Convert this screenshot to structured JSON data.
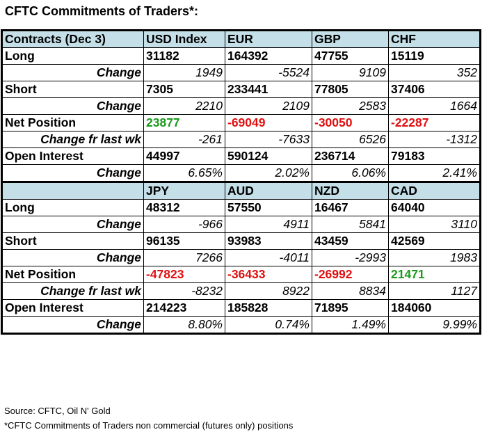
{
  "title": "CFTC Commitments of Traders*:",
  "top": {
    "header": [
      "Contracts (Dec 3)",
      "USD Index",
      "EUR",
      "GBP",
      "CHF"
    ],
    "rows": [
      {
        "label": "Long",
        "kind": "main",
        "values": [
          "31182",
          "164392",
          "47755",
          "15119"
        ]
      },
      {
        "label": "Change",
        "kind": "sub",
        "values": [
          "1949",
          "-5524",
          "9109",
          "352"
        ]
      },
      {
        "label": "Short",
        "kind": "main",
        "values": [
          "7305",
          "233441",
          "77805",
          "37406"
        ]
      },
      {
        "label": "Change",
        "kind": "sub",
        "values": [
          "2210",
          "2109",
          "2583",
          "1664"
        ]
      },
      {
        "label": "Net Position",
        "kind": "net",
        "values": [
          "23877",
          "-69049",
          "-30050",
          "-22287"
        ]
      },
      {
        "label": "Change fr last wk",
        "kind": "sub",
        "values": [
          "-261",
          "-7633",
          "6526",
          "-1312"
        ]
      },
      {
        "label": "Open Interest",
        "kind": "main",
        "values": [
          "44997",
          "590124",
          "236714",
          "79183"
        ]
      },
      {
        "label": "Change",
        "kind": "sub",
        "values": [
          "6.65%",
          "2.02%",
          "6.06%",
          "2.41%"
        ]
      }
    ]
  },
  "bottom": {
    "header": [
      "",
      "JPY",
      "AUD",
      "NZD",
      "CAD"
    ],
    "rows": [
      {
        "label": "Long",
        "kind": "main",
        "values": [
          "48312",
          "57550",
          "16467",
          "64040"
        ]
      },
      {
        "label": "Change",
        "kind": "sub",
        "values": [
          "-966",
          "4911",
          "5841",
          "3110"
        ]
      },
      {
        "label": "Short",
        "kind": "main",
        "values": [
          "96135",
          "93983",
          "43459",
          "42569"
        ]
      },
      {
        "label": "Change",
        "kind": "sub",
        "values": [
          "7266",
          "-4011",
          "-2993",
          "1983"
        ]
      },
      {
        "label": "Net Position",
        "kind": "net",
        "values": [
          "-47823",
          "-36433",
          "-26992",
          "21471"
        ]
      },
      {
        "label": "Change fr last wk",
        "kind": "sub",
        "values": [
          "-8232",
          "8922",
          "8834",
          "1127"
        ]
      },
      {
        "label": "Open Interest",
        "kind": "main",
        "values": [
          "214223",
          "185828",
          "71895",
          "184060"
        ]
      },
      {
        "label": "Change",
        "kind": "sub",
        "values": [
          "8.80%",
          "0.74%",
          "1.49%",
          "9.99%"
        ]
      }
    ]
  },
  "colors": {
    "header_bg": "#c5dfe8",
    "net_positive": "#1a9a1a",
    "net_negative": "#e01010"
  },
  "footer": {
    "source": "Source: CFTC, Oil N' Gold",
    "note": "*CFTC Commitments of Traders non commercial (futures only) positions"
  }
}
